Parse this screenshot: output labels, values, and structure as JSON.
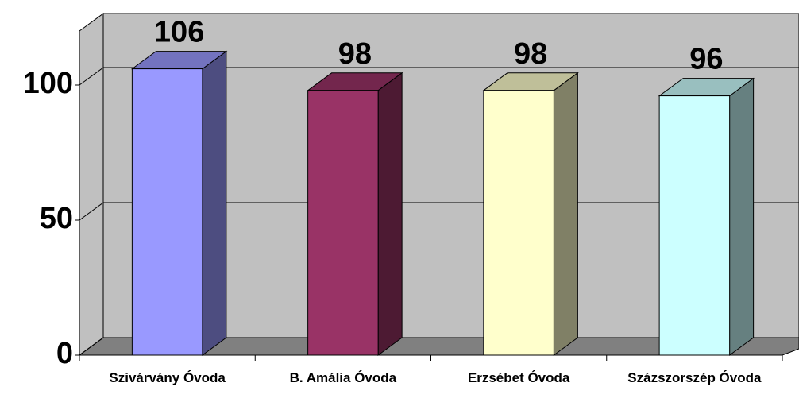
{
  "chart_data": {
    "type": "bar3d",
    "categories": [
      "Szivárvány Óvoda",
      "B. Amália Óvoda",
      "Erzsébet Óvoda",
      "Százszorszép Óvoda"
    ],
    "values": [
      106,
      98,
      98,
      96
    ],
    "colors": [
      "#9999ff",
      "#993366",
      "#ffffcc",
      "#ccffff"
    ],
    "ylim": [
      0,
      120
    ],
    "yticks": [
      0,
      50,
      100
    ],
    "grid": true
  }
}
